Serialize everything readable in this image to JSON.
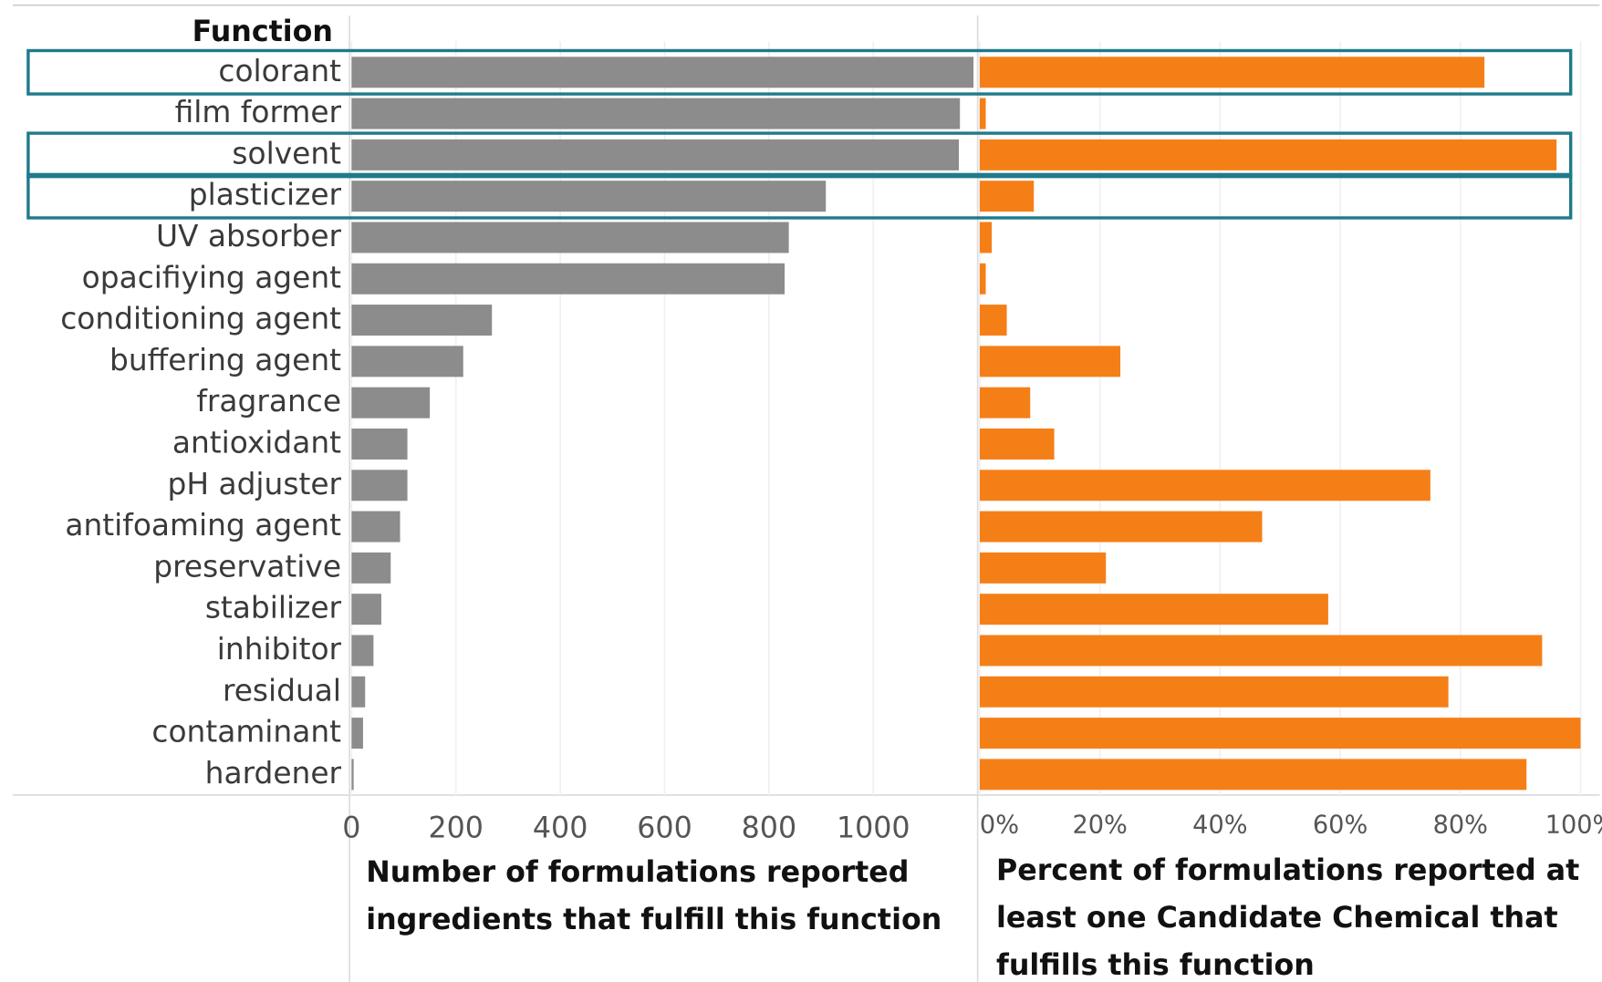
{
  "chart_data": [
    {
      "type": "barh",
      "category_label": "Function",
      "categories": [
        "colorant",
        "film former",
        "solvent",
        "plasticizer",
        "UV absorber",
        "opacifiying agent",
        "conditioning agent",
        "buffering agent",
        "fragrance",
        "antioxidant",
        "pH adjuster",
        "antifoaming agent",
        "preservative",
        "stabilizer",
        "inhibitor",
        "residual",
        "contaminant",
        "hardener"
      ],
      "values": [
        1192,
        1166,
        1164,
        909,
        838,
        830,
        269,
        214,
        150,
        107,
        107,
        93,
        75,
        57,
        42,
        26,
        22,
        4
      ],
      "color": "#8c8c8c",
      "highlighted": [
        true,
        false,
        true,
        true,
        false,
        false,
        false,
        false,
        false,
        false,
        false,
        false,
        false,
        false,
        false,
        false,
        false,
        false
      ],
      "highlight_color": "#1f7a8c",
      "xlim": [
        0,
        1200
      ],
      "xticks": [
        0,
        200,
        400,
        600,
        800,
        1000
      ],
      "grid": true,
      "xlabel": [
        "Number of formulations reported",
        "ingredients that fulfill this function"
      ]
    },
    {
      "type": "barh",
      "values": [
        84,
        1,
        96,
        9,
        2,
        1,
        4.5,
        23.4,
        8.4,
        12.4,
        75,
        47,
        21,
        58,
        93.6,
        78,
        100,
        91
      ],
      "color": "#f57f17",
      "xlim": [
        0,
        103
      ],
      "xticks": [
        {
          "value": 0,
          "label": "0%"
        },
        {
          "value": 20,
          "label": "20%"
        },
        {
          "value": 40,
          "label": "40%"
        },
        {
          "value": 60,
          "label": "60%"
        },
        {
          "value": 80,
          "label": "80%"
        },
        {
          "value": 100,
          "label": "100%"
        }
      ],
      "grid": true,
      "xlabel": [
        "Percent of formulations reported at",
        "least one Candidate Chemical that",
        "fulfills this function"
      ]
    }
  ]
}
